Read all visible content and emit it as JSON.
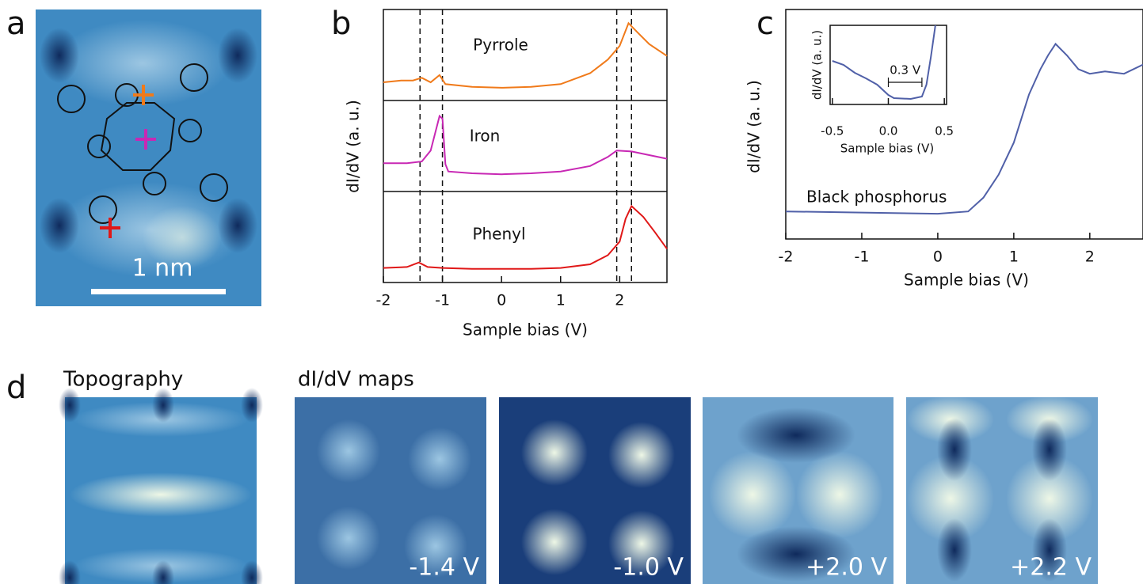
{
  "panel_a": {
    "label": "a",
    "scale_bar": "1 nm"
  },
  "panel_d": {
    "label": "d",
    "topography_title": "Topography",
    "maps_title": "dI/dV maps",
    "map_labels": [
      "-1.4 V",
      "-1.0 V",
      "+2.0 V",
      "+2.2 V"
    ]
  },
  "chart_data": [
    {
      "type": "line",
      "panel_label": "b",
      "xlabel": "Sample bias (V)",
      "ylabel": "dI/dV (a. u.)",
      "xlim": [
        -2,
        2.8
      ],
      "xticks": [
        -2,
        -1,
        0,
        1,
        2
      ],
      "ylim": [
        0,
        1
      ],
      "reference_lines": [
        -1.38,
        -1.0,
        1.95,
        2.2
      ],
      "series": [
        {
          "name": "Pyrrole",
          "color": "#f07a1a",
          "x": [
            -2,
            -1.7,
            -1.5,
            -1.35,
            -1.2,
            -1.05,
            -0.95,
            -0.5,
            0,
            0.5,
            1,
            1.5,
            1.8,
            2.0,
            2.15,
            2.3,
            2.5,
            2.8
          ],
          "values": [
            0.2,
            0.22,
            0.22,
            0.25,
            0.2,
            0.28,
            0.18,
            0.15,
            0.14,
            0.15,
            0.18,
            0.3,
            0.45,
            0.6,
            0.85,
            0.75,
            0.62,
            0.49
          ]
        },
        {
          "name": "Iron",
          "color": "#c828b4",
          "x": [
            -2,
            -1.6,
            -1.35,
            -1.2,
            -1.1,
            -1.05,
            -1.0,
            -0.95,
            -0.9,
            -0.5,
            0,
            0.5,
            1,
            1.5,
            1.8,
            1.95,
            2.2,
            2.5,
            2.8
          ],
          "values": [
            0.31,
            0.31,
            0.33,
            0.45,
            0.7,
            0.83,
            0.8,
            0.3,
            0.22,
            0.2,
            0.19,
            0.2,
            0.22,
            0.28,
            0.38,
            0.45,
            0.44,
            0.4,
            0.36
          ]
        },
        {
          "name": "Phenyl",
          "color": "#e01818",
          "x": [
            -2,
            -1.6,
            -1.4,
            -1.25,
            -1,
            -0.5,
            0,
            0.5,
            1,
            1.5,
            1.8,
            2.0,
            2.1,
            2.2,
            2.4,
            2.6,
            2.8
          ],
          "values": [
            0.16,
            0.17,
            0.22,
            0.17,
            0.16,
            0.15,
            0.15,
            0.15,
            0.16,
            0.2,
            0.3,
            0.45,
            0.7,
            0.84,
            0.72,
            0.55,
            0.37
          ]
        }
      ]
    },
    {
      "type": "line",
      "panel_label": "c",
      "xlabel": "Sample bias (V)",
      "ylabel": "dI/dV (a. u.)",
      "xlim": [
        -2,
        2.7
      ],
      "xticks": [
        -2,
        -1,
        0,
        1,
        2
      ],
      "ylim": [
        0,
        1
      ],
      "series": [
        {
          "name": "Black phosphorus",
          "color": "#5060a8",
          "x": [
            -2,
            -1,
            0,
            0.4,
            0.6,
            0.8,
            1.0,
            1.2,
            1.35,
            1.45,
            1.55,
            1.7,
            1.85,
            2.0,
            2.2,
            2.45,
            2.7
          ],
          "values": [
            0.12,
            0.115,
            0.11,
            0.12,
            0.18,
            0.28,
            0.42,
            0.63,
            0.74,
            0.8,
            0.85,
            0.8,
            0.74,
            0.72,
            0.73,
            0.72,
            0.76
          ]
        }
      ]
    },
    {
      "type": "line",
      "xlabel": "Sample bias (V)",
      "ylabel": "dI/dV (a. u.)",
      "xlim": [
        -0.52,
        0.52
      ],
      "xticks": [
        -0.5,
        {
          "value": 0,
          "label": "0.0"
        },
        0.5
      ],
      "ylim": [
        0,
        1
      ],
      "annotation": "0.3 V",
      "gap": [
        0,
        0.3
      ],
      "series": [
        {
          "color": "#5060a8",
          "x": [
            -0.5,
            -0.4,
            -0.3,
            -0.2,
            -0.1,
            0,
            0.05,
            0.2,
            0.3,
            0.34,
            0.38,
            0.42
          ],
          "values": [
            0.55,
            0.5,
            0.4,
            0.33,
            0.25,
            0.12,
            0.08,
            0.07,
            0.1,
            0.25,
            0.6,
            1.0
          ]
        }
      ]
    }
  ]
}
